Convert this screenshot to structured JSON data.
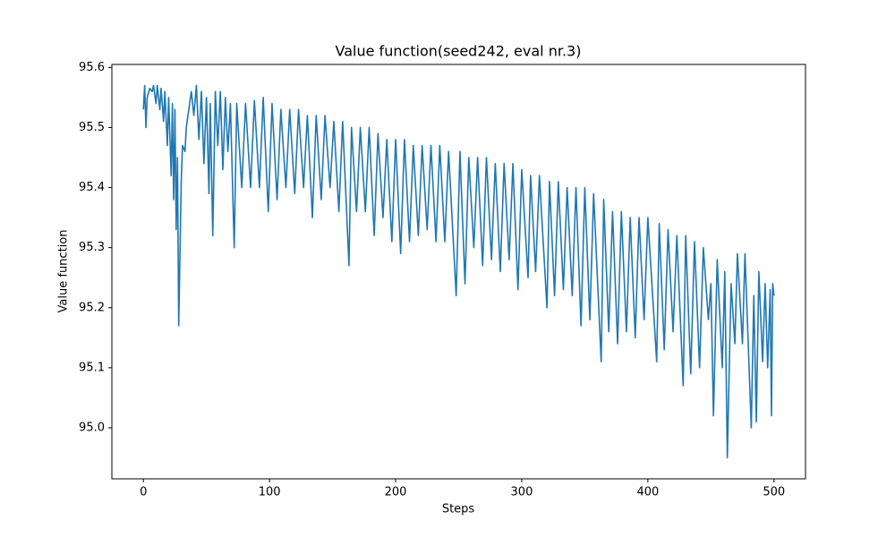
{
  "chart_data": {
    "type": "line",
    "title": "Value function(seed242, eval nr.3)",
    "xlabel": "Steps",
    "ylabel": "Value function",
    "x": [
      0,
      1,
      2,
      3,
      5,
      7,
      8,
      10,
      11,
      13,
      14,
      16,
      17,
      19,
      20,
      22,
      23,
      24,
      25,
      26,
      27,
      28,
      30,
      31,
      33,
      34,
      36,
      38,
      40,
      42,
      44,
      46,
      48,
      50,
      52,
      53,
      55,
      57,
      59,
      61,
      63,
      65,
      67,
      69,
      72,
      74,
      78,
      81,
      85,
      88,
      92,
      95,
      99,
      102,
      106,
      109,
      113,
      116,
      120,
      123,
      127,
      130,
      134,
      137,
      141,
      144,
      148,
      151,
      155,
      158,
      163,
      165,
      169,
      172,
      176,
      179,
      183,
      186,
      190,
      193,
      197,
      200,
      204,
      207,
      211,
      214,
      218,
      221,
      225,
      228,
      232,
      235,
      239,
      242,
      248,
      251,
      255,
      258,
      262,
      265,
      269,
      272,
      276,
      279,
      283,
      286,
      290,
      293,
      297,
      300,
      305,
      307,
      311,
      314,
      320,
      322,
      326,
      329,
      333,
      336,
      340,
      343,
      347,
      350,
      354,
      357,
      363,
      365,
      369,
      372,
      376,
      379,
      383,
      386,
      390,
      393,
      397,
      400,
      407,
      409,
      413,
      416,
      420,
      423,
      428,
      430,
      434,
      437,
      441,
      444,
      448,
      450,
      452,
      455,
      459,
      461,
      463,
      466,
      469,
      471,
      475,
      477,
      482,
      484,
      486,
      488,
      491,
      493,
      495,
      497,
      498,
      499,
      500
    ],
    "series": [
      {
        "name": "Value function",
        "color": "#1f77b4",
        "values": [
          95.53,
          95.57,
          95.5,
          95.55,
          95.565,
          95.56,
          95.57,
          95.54,
          95.57,
          95.53,
          95.565,
          95.51,
          95.56,
          95.47,
          95.55,
          95.42,
          95.54,
          95.38,
          95.53,
          95.33,
          95.45,
          95.17,
          95.41,
          95.47,
          95.46,
          95.5,
          95.53,
          95.56,
          95.52,
          95.57,
          95.48,
          95.56,
          95.44,
          95.55,
          95.39,
          95.54,
          95.32,
          95.56,
          95.47,
          95.56,
          95.43,
          95.55,
          95.46,
          95.54,
          95.3,
          95.54,
          95.4,
          95.54,
          95.4,
          95.545,
          95.4,
          95.55,
          95.36,
          95.54,
          95.38,
          95.53,
          95.4,
          95.53,
          95.39,
          95.53,
          95.4,
          95.52,
          95.35,
          95.52,
          95.38,
          95.52,
          95.4,
          95.51,
          95.36,
          95.51,
          95.27,
          95.5,
          95.36,
          95.5,
          95.36,
          95.5,
          95.32,
          95.49,
          95.35,
          95.48,
          95.31,
          95.48,
          95.29,
          95.48,
          95.31,
          95.47,
          95.32,
          95.47,
          95.33,
          95.47,
          95.31,
          95.47,
          95.31,
          95.46,
          95.22,
          95.46,
          95.24,
          95.45,
          95.3,
          95.45,
          95.27,
          95.45,
          95.28,
          95.44,
          95.26,
          95.44,
          95.28,
          95.44,
          95.23,
          95.43,
          95.25,
          95.42,
          95.26,
          95.42,
          95.2,
          95.41,
          95.22,
          95.41,
          95.23,
          95.4,
          95.22,
          95.4,
          95.17,
          95.4,
          95.18,
          95.39,
          95.11,
          95.38,
          95.16,
          95.36,
          95.14,
          95.36,
          95.16,
          95.35,
          95.15,
          95.35,
          95.18,
          95.35,
          95.11,
          95.34,
          95.13,
          95.33,
          95.16,
          95.32,
          95.07,
          95.32,
          95.09,
          95.31,
          95.1,
          95.3,
          95.18,
          95.24,
          95.02,
          95.28,
          95.1,
          95.26,
          94.95,
          95.24,
          95.14,
          95.29,
          95.14,
          95.29,
          95.0,
          95.22,
          95.01,
          95.26,
          95.11,
          95.24,
          95.1,
          95.23,
          95.02,
          95.24,
          95.22
        ]
      }
    ],
    "xlim": [
      -25,
      525
    ],
    "ylim": [
      94.915,
      95.605
    ],
    "xticks": [
      0,
      100,
      200,
      300,
      400,
      500
    ],
    "yticks": [
      {
        "value": 95,
        "label": "95.0"
      },
      95.1,
      95.2,
      95.3,
      95.4,
      95.5,
      95.6
    ],
    "grid": false
  }
}
